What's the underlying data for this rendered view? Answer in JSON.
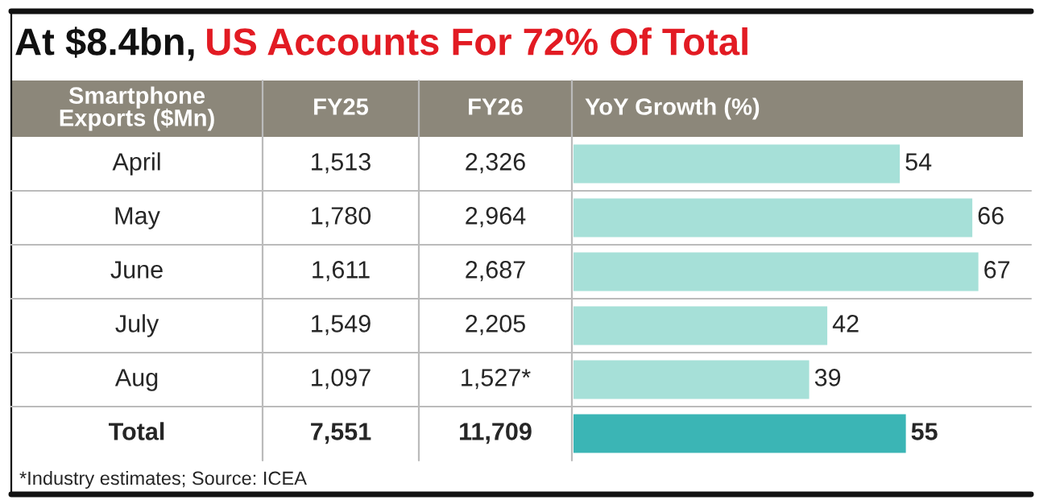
{
  "chart_data": {
    "type": "bar",
    "orientation": "horizontal",
    "title": "At $8.4bn,",
    "subtitle": "US Accounts For 72% Of Total",
    "xlabel": "YoY Growth (%)",
    "categories": [
      "April",
      "May",
      "June",
      "July",
      "Aug",
      "Total"
    ],
    "values": [
      54,
      66,
      67,
      42,
      39,
      55
    ],
    "colors": [
      "#a6e0d8",
      "#a6e0d8",
      "#a6e0d8",
      "#a6e0d8",
      "#a6e0d8",
      "#3bb5b5"
    ],
    "data_labels": true,
    "annotations": [
      "Smartphone\nExports ($Mn)",
      "FY25",
      "FY26",
      "1,513",
      "2,326",
      "1,780",
      "2,964",
      "1,611",
      "2,687",
      "1,549",
      "2,205",
      "1,097",
      "1,527*",
      "7,551",
      "11,709",
      "*Industry estimates; Source: ICEA"
    ]
  }
}
